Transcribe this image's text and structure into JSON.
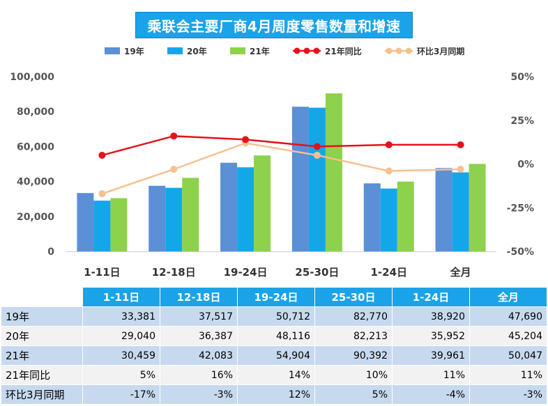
{
  "chart_data": {
    "type": "bar",
    "title": "乘联会主要厂商4月周度零售数量和增速",
    "categories": [
      "1-11日",
      "12-18日",
      "19-24日",
      "25-30日",
      "1-24日",
      "全月"
    ],
    "series": [
      {
        "name": "19年",
        "kind": "bar",
        "axis": "left",
        "color": "#5b8fd6",
        "values": [
          33381,
          37517,
          50712,
          82770,
          38920,
          47690
        ]
      },
      {
        "name": "20年",
        "kind": "bar",
        "axis": "left",
        "color": "#13a7ea",
        "values": [
          29040,
          36387,
          48116,
          82213,
          35952,
          45204
        ]
      },
      {
        "name": "21年",
        "kind": "bar",
        "axis": "left",
        "color": "#8ed14c",
        "values": [
          30459,
          42083,
          54904,
          90392,
          39961,
          50047
        ]
      },
      {
        "name": "21年同比",
        "kind": "line",
        "axis": "right",
        "color": "#e8101a",
        "values": [
          5,
          16,
          14,
          10,
          11,
          11
        ]
      },
      {
        "name": "环比3月同期",
        "kind": "line",
        "axis": "right",
        "color": "#f6c08f",
        "values": [
          -17,
          -3,
          12,
          5,
          -4,
          -3
        ]
      }
    ],
    "y_left": {
      "min": 0,
      "max": 100000,
      "ticks": [
        "0",
        "20,000",
        "40,000",
        "60,000",
        "80,000",
        "100,000"
      ]
    },
    "y_right": {
      "min": -50,
      "max": 50,
      "ticks": [
        "-50%",
        "-25%",
        "0%",
        "25%",
        "50%"
      ]
    },
    "legend_position": "top",
    "grid": false
  },
  "table": {
    "headers": [
      "1-11日",
      "12-18日",
      "19-24日",
      "25-30日",
      "1-24日",
      "全月"
    ],
    "rows": [
      {
        "label": "19年",
        "cells": [
          "33,381",
          "37,517",
          "50,712",
          "82,770",
          "38,920",
          "47,690"
        ]
      },
      {
        "label": "20年",
        "cells": [
          "29,040",
          "36,387",
          "48,116",
          "82,213",
          "35,952",
          "45,204"
        ]
      },
      {
        "label": "21年",
        "cells": [
          "30,459",
          "42,083",
          "54,904",
          "90,392",
          "39,961",
          "50,047"
        ]
      },
      {
        "label": "21年同比",
        "cells": [
          "5%",
          "16%",
          "14%",
          "10%",
          "11%",
          "11%"
        ]
      },
      {
        "label": "环比3月同期",
        "cells": [
          "-17%",
          "-3%",
          "12%",
          "5%",
          "-4%",
          "-3%"
        ]
      }
    ]
  }
}
